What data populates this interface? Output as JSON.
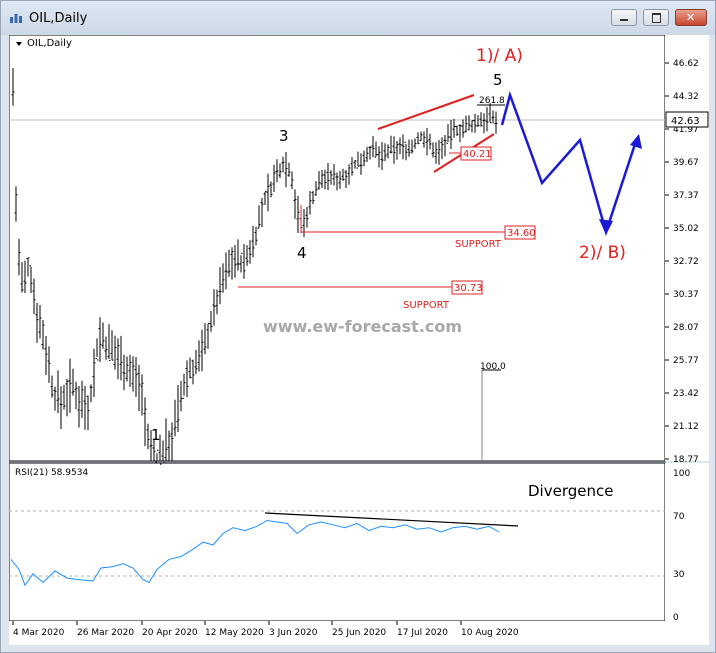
{
  "window": {
    "title": "OIL,Daily",
    "buttons": [
      "minimize",
      "maximize",
      "close"
    ]
  },
  "chart_data": [
    {
      "type": "candlestick",
      "label": "OIL,Daily",
      "ylim": [
        18.77,
        48.5
      ],
      "y_ticks": [
        "46.62",
        "44.32",
        "41.97",
        "39.67",
        "37.37",
        "35.02",
        "32.72",
        "30.37",
        "28.07",
        "25.77",
        "23.42",
        "21.12",
        "18.77"
      ],
      "x_ticks": [
        "4 Mar 2020",
        "26 Mar 2020",
        "20 Apr 2020",
        "12 May 2020",
        "3 Jun 2020",
        "25 Jun 2020",
        "17 Jul 2020",
        "10 Aug 2020"
      ],
      "current_price": "42.63",
      "watermark": "www.ew-forecast.com",
      "wave_labels": [
        "1",
        "3",
        "4",
        "5",
        "1)/ A)",
        "2)/ B)"
      ],
      "levels": [
        {
          "label": "SUPPORT",
          "value": "34.60"
        },
        {
          "label": "SUPPORT",
          "value": "30.73"
        },
        {
          "label": "",
          "value": "40.21"
        }
      ],
      "fib_labels": [
        "261.8",
        "100.0"
      ],
      "colors": {
        "bars": "#000000",
        "annotation_red": "#e02020",
        "projection": "#1a1ad6"
      }
    },
    {
      "type": "line",
      "label": "RSI(21) 58.9534",
      "ylim": [
        0,
        100
      ],
      "y_ticks": [
        "100",
        "70",
        "30",
        "0"
      ],
      "annotation": "Divergence",
      "last_value": 58.9534
    }
  ]
}
